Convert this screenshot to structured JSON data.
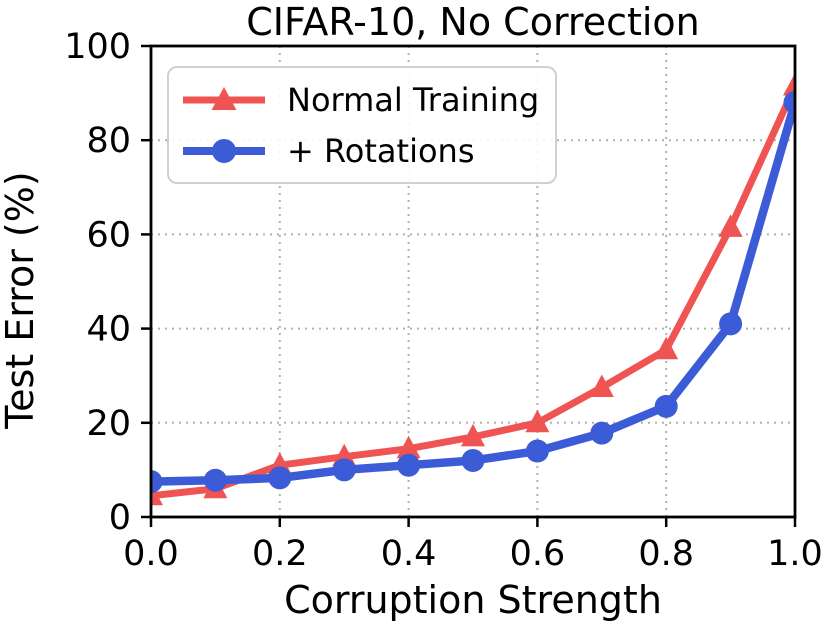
{
  "page": {
    "title": "CIFAR-10, No Correction"
  },
  "chart_data": {
    "type": "line",
    "title": "CIFAR-10, No Correction",
    "xlabel": "Corruption Strength",
    "ylabel": "Test Error (%)",
    "xlim": [
      0.0,
      1.0
    ],
    "ylim": [
      0,
      100
    ],
    "xticks": [
      0.0,
      0.2,
      0.4,
      0.6,
      0.8,
      1.0
    ],
    "xtick_labels": [
      "0.0",
      "0.2",
      "0.4",
      "0.6",
      "0.8",
      "1.0"
    ],
    "yticks": [
      0,
      20,
      40,
      60,
      80,
      100
    ],
    "ytick_labels": [
      "0",
      "20",
      "40",
      "60",
      "80",
      "100"
    ],
    "grid": "dotted",
    "legend_position": "upper left",
    "x": [
      0.0,
      0.1,
      0.2,
      0.3,
      0.4,
      0.5,
      0.6,
      0.7,
      0.8,
      0.9,
      1.0
    ],
    "series": [
      {
        "name": "Normal Training",
        "color": "#ef5452",
        "marker": "triangle-up",
        "line_width": 7,
        "values": [
          4.5,
          6.0,
          11.0,
          12.8,
          14.5,
          17.0,
          20.0,
          27.5,
          35.5,
          61.5,
          91.5
        ]
      },
      {
        "name": "+ Rotations",
        "color": "#3b5cd6",
        "marker": "circle",
        "line_width": 8.5,
        "values": [
          7.5,
          7.8,
          8.3,
          10.0,
          11.0,
          12.0,
          14.0,
          17.8,
          23.5,
          41.0,
          88.0
        ]
      }
    ]
  },
  "colors": {
    "grid": "#b0b0b0",
    "spine": "#000000",
    "tick_text": "#000000",
    "legend_border": "#d0d0d0"
  }
}
